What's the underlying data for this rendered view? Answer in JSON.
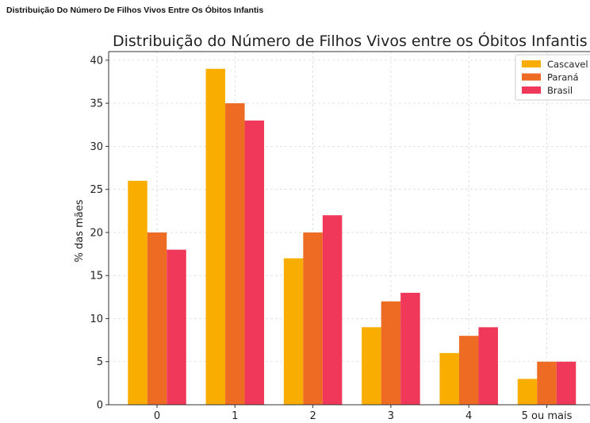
{
  "page": {
    "header": "Distribuição Do Número De Filhos Vivos Entre Os Óbitos Infantis"
  },
  "chart_data": {
    "type": "bar",
    "title": "Distribuição do Número de Filhos Vivos entre os Óbitos Infantis",
    "xlabel": "",
    "ylabel": "% das mães",
    "categories": [
      "0",
      "1",
      "2",
      "3",
      "4",
      "5 ou mais"
    ],
    "series": [
      {
        "name": "Cascavel",
        "color": "#F9AD00",
        "values": [
          26,
          39,
          17,
          9,
          6,
          3
        ]
      },
      {
        "name": "Paraná",
        "color": "#EE6B24",
        "values": [
          20,
          35,
          20,
          12,
          8,
          5
        ]
      },
      {
        "name": "Brasil",
        "color": "#F0395A",
        "values": [
          18,
          33,
          22,
          13,
          9,
          5
        ]
      }
    ],
    "ylim": [
      0,
      41
    ],
    "yticks": [
      0,
      5,
      10,
      15,
      20,
      25,
      30,
      35,
      40
    ],
    "grid": true,
    "legend": "top-right"
  }
}
